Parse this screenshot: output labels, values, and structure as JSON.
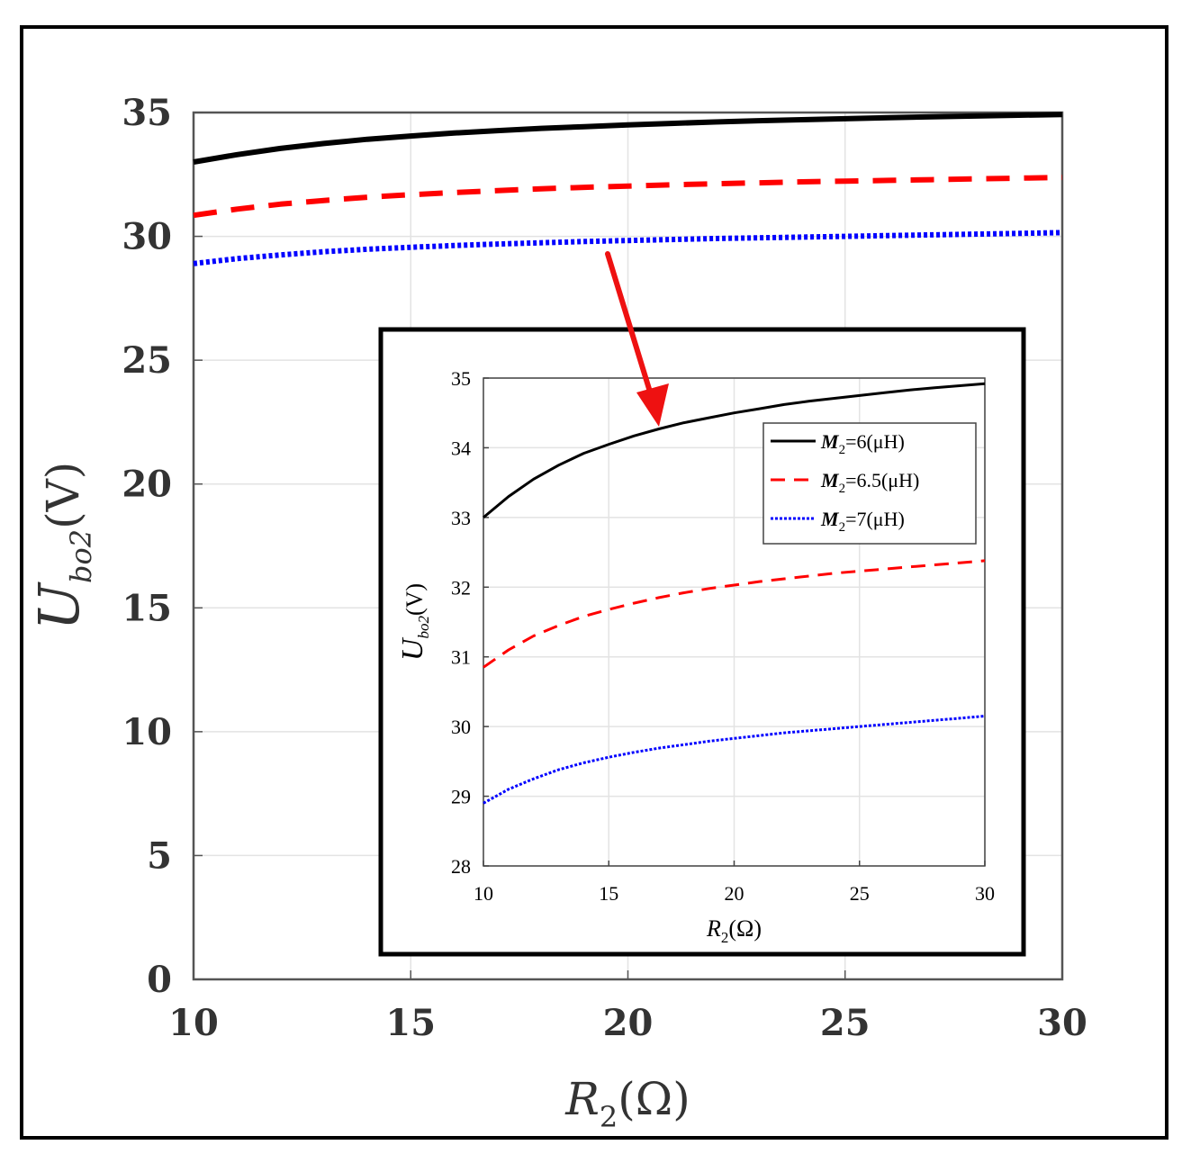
{
  "chart_data": [
    {
      "type": "line",
      "role": "main",
      "xlabel": "R",
      "xlabel_sub": "2",
      "xlabel_unit": "(Ω)",
      "ylabel": "U",
      "ylabel_sub": "bo2",
      "ylabel_unit": "(V)",
      "xlim": [
        10,
        30
      ],
      "ylim": [
        0,
        35
      ],
      "xticks": [
        "10",
        "15",
        "20",
        "25",
        "30"
      ],
      "yticks": [
        "0",
        "5",
        "10",
        "15",
        "20",
        "25",
        "30",
        "35"
      ],
      "grid": true,
      "x": [
        10,
        11,
        12,
        13,
        14,
        15,
        16,
        17,
        18,
        19,
        20,
        21,
        22,
        23,
        24,
        25,
        26,
        27,
        28,
        29,
        30
      ],
      "series": [
        {
          "name": "M2=6(μH)",
          "color": "#000000",
          "style": "solid",
          "values": [
            33.0,
            33.3,
            33.55,
            33.75,
            33.92,
            34.05,
            34.17,
            34.27,
            34.36,
            34.43,
            34.5,
            34.56,
            34.62,
            34.67,
            34.71,
            34.75,
            34.79,
            34.83,
            34.86,
            34.89,
            34.92
          ]
        },
        {
          "name": "M2=6.5(μH)",
          "color": "#ff0000",
          "style": "dashed",
          "values": [
            30.85,
            31.1,
            31.3,
            31.45,
            31.58,
            31.68,
            31.77,
            31.85,
            31.92,
            31.98,
            32.03,
            32.08,
            32.12,
            32.16,
            32.2,
            32.23,
            32.26,
            32.29,
            32.32,
            32.35,
            32.38
          ]
        },
        {
          "name": "M2=7(μH)",
          "color": "#0000ff",
          "style": "dotted",
          "values": [
            28.9,
            29.1,
            29.25,
            29.38,
            29.48,
            29.56,
            29.63,
            29.69,
            29.74,
            29.79,
            29.83,
            29.87,
            29.91,
            29.94,
            29.97,
            30.0,
            30.03,
            30.06,
            30.09,
            30.12,
            30.15
          ]
        }
      ]
    },
    {
      "type": "line",
      "role": "inset",
      "xlabel": "R",
      "xlabel_sub": "2",
      "xlabel_unit": "(Ω)",
      "ylabel": "U",
      "ylabel_sub": "bo2",
      "ylabel_unit": "(V)",
      "xlim": [
        10,
        30
      ],
      "ylim": [
        28,
        35
      ],
      "xticks": [
        "10",
        "15",
        "20",
        "25",
        "30"
      ],
      "yticks": [
        "28",
        "29",
        "30",
        "31",
        "32",
        "33",
        "34",
        "35"
      ],
      "grid": true,
      "legend_placement": "top-right",
      "legend": [
        {
          "sym": "M",
          "sub": "2",
          "rest": "=6(μH)",
          "color": "#000000",
          "style": "solid"
        },
        {
          "sym": "M",
          "sub": "2",
          "rest": "=6.5(μH)",
          "color": "#ff0000",
          "style": "dashed"
        },
        {
          "sym": "M",
          "sub": "2",
          "rest": "=7(μH)",
          "color": "#0000ff",
          "style": "dotted"
        }
      ],
      "x": [
        10,
        11,
        12,
        13,
        14,
        15,
        16,
        17,
        18,
        19,
        20,
        21,
        22,
        23,
        24,
        25,
        26,
        27,
        28,
        29,
        30
      ],
      "series": [
        {
          "name": "M2=6(μH)",
          "color": "#000000",
          "style": "solid",
          "values": [
            33.0,
            33.3,
            33.55,
            33.75,
            33.92,
            34.05,
            34.17,
            34.27,
            34.36,
            34.43,
            34.5,
            34.56,
            34.62,
            34.67,
            34.71,
            34.75,
            34.79,
            34.83,
            34.86,
            34.89,
            34.92
          ]
        },
        {
          "name": "M2=6.5(μH)",
          "color": "#ff0000",
          "style": "dashed",
          "values": [
            30.85,
            31.1,
            31.3,
            31.45,
            31.58,
            31.68,
            31.77,
            31.85,
            31.92,
            31.98,
            32.03,
            32.08,
            32.12,
            32.16,
            32.2,
            32.23,
            32.26,
            32.29,
            32.32,
            32.35,
            32.38
          ]
        },
        {
          "name": "M2=7(μH)",
          "color": "#0000ff",
          "style": "dotted",
          "values": [
            28.9,
            29.1,
            29.25,
            29.38,
            29.48,
            29.56,
            29.63,
            29.69,
            29.74,
            29.79,
            29.83,
            29.87,
            29.91,
            29.94,
            29.97,
            30.0,
            30.03,
            30.06,
            30.09,
            30.12,
            30.15
          ]
        }
      ]
    }
  ],
  "annotation": {
    "arrow_color": "#ee1111"
  }
}
